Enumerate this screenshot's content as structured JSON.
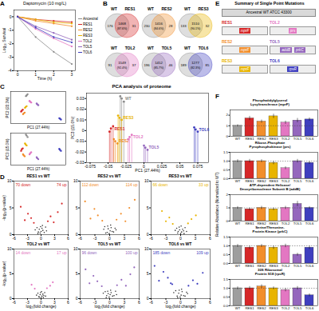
{
  "chart_data": [
    {
      "panel": "A",
      "type": "line",
      "title": "Daptomycin (10 mg/L)",
      "x_label": "Time (h)",
      "y_label": "Log₁₀ Survival",
      "x": [
        0,
        1,
        2,
        3
      ],
      "xlim": [
        -0.2,
        3.2
      ],
      "xticks": [
        0,
        1,
        2,
        3
      ],
      "ylim": [
        -4,
        0.5
      ],
      "yticks": [
        -4,
        -3,
        -2,
        -1,
        0
      ],
      "marker": "circle",
      "legend": "right",
      "series": [
        {
          "name": "Ancestral",
          "color": "#8c8c8c",
          "values": [
            0,
            -1.5,
            -2.6,
            -3.5
          ]
        },
        {
          "name": "RES1",
          "color": "#d62728",
          "values": [
            0,
            -0.2,
            -0.3,
            -0.4
          ]
        },
        {
          "name": "RES2",
          "color": "#f28e2b",
          "values": [
            0,
            -0.3,
            -0.5,
            -0.7
          ]
        },
        {
          "name": "RES3",
          "color": "#e8b400",
          "values": [
            0,
            -0.2,
            -0.4,
            -0.5
          ]
        },
        {
          "name": "TOL2",
          "color": "#e377c2",
          "values": [
            0,
            -0.9,
            -1.6,
            -2.2
          ]
        },
        {
          "name": "TOL5",
          "color": "#9467bd",
          "values": [
            0,
            -0.7,
            -1.2,
            -1.7
          ]
        },
        {
          "name": "TOL6",
          "color": "#3f3fbf",
          "values": [
            0,
            -0.8,
            -1.5,
            -1.9
          ]
        }
      ]
    },
    {
      "panel": "B",
      "type": "venn",
      "diagrams": [
        {
          "left": "WT",
          "right": "RES1",
          "left_only": 176,
          "both": 1468,
          "both_label": "(87.6%)",
          "right_only": 31,
          "color": "#d62728"
        },
        {
          "left": "WT",
          "right": "RES2",
          "left_only": 230,
          "both": 1416,
          "both_label": "(84.6%)",
          "right_only": 28,
          "color": "#f28e2b"
        },
        {
          "left": "WT",
          "right": "RES3",
          "left_only": 133,
          "both": 1510,
          "both_label": "(90.1%)",
          "right_only": 32,
          "color": "#e8b400"
        },
        {
          "left": "WT",
          "right": "TOL2",
          "left_only": 91,
          "both": 1549,
          "both_label": "(92.4%)",
          "right_only": 37,
          "color": "#e377c2"
        },
        {
          "left": "WT",
          "right": "TOL5",
          "left_only": 196,
          "both": 1452,
          "both_label": "(85.7%)",
          "right_only": 46,
          "color": "#9467bd"
        },
        {
          "left": "WT",
          "right": "TOL6",
          "left_only": 189,
          "both": 1277,
          "both_label": "(82.3%)",
          "right_only": 85,
          "color": "#3f3fbf"
        }
      ]
    },
    {
      "panel": "C",
      "type": "scatter",
      "title": "PCA analysis of proteome",
      "x_label": "PC1 (27.44%)",
      "y_label": "PC2 (22.3%)",
      "z_label": "PC3 (15.0%)",
      "xlim": [
        -0.08,
        0.09
      ],
      "ylim": [
        -0.06,
        0.06
      ],
      "zlim": [
        -0.03,
        0.035
      ],
      "xticks": [
        -0.075,
        -0.05,
        -0.025,
        0,
        0.025,
        0.05,
        0.075
      ],
      "zticks": [
        -0.03,
        -0.02,
        -0.01,
        0,
        0.01,
        0.02,
        0.03
      ],
      "series": [
        {
          "name": "WT",
          "color": "#8c8c8c",
          "x": [
            -0.031,
            -0.028,
            -0.033
          ],
          "y": [
            0.046,
            0.05,
            0.043
          ],
          "z": [
            0.03,
            0.027,
            0.032
          ]
        },
        {
          "name": "RES1",
          "color": "#d62728",
          "x": [
            -0.046,
            -0.043,
            -0.048
          ],
          "y": [
            -0.012,
            -0.008,
            -0.015
          ],
          "z": [
            0.002,
            0.004,
            -0.001
          ]
        },
        {
          "name": "RES2",
          "color": "#f28e2b",
          "x": [
            -0.04,
            -0.037,
            -0.042
          ],
          "y": [
            -0.022,
            -0.019,
            -0.025
          ],
          "z": [
            -0.01,
            -0.012,
            -0.008
          ]
        },
        {
          "name": "RES3",
          "color": "#e8b400",
          "x": [
            -0.034,
            -0.031,
            -0.036
          ],
          "y": [
            0.002,
            0.005,
            -0.001
          ],
          "z": [
            0.012,
            0.01,
            0.014
          ]
        },
        {
          "name": "TOL2",
          "color": "#e377c2",
          "x": [
            -0.02,
            -0.017,
            -0.022
          ],
          "y": [
            0.022,
            0.019,
            0.025
          ],
          "z": [
            -0.006,
            -0.004,
            -0.008
          ]
        },
        {
          "name": "TOL5",
          "color": "#9467bd",
          "x": [
            0.002,
            0.005,
            0.0
          ],
          "y": [
            0.012,
            0.009,
            0.015
          ],
          "z": [
            -0.016,
            -0.018,
            -0.014
          ]
        },
        {
          "name": "TOL6",
          "color": "#3f3fbf",
          "x": [
            0.072,
            0.075,
            0.07
          ],
          "y": [
            -0.042,
            -0.045,
            -0.04
          ],
          "z": [
            0.001,
            -0.001,
            0.003
          ]
        }
      ]
    },
    {
      "panel": "D",
      "type": "scatter",
      "x_label": "log₂(fold change)",
      "y_label": "-log₁₀(p-value)",
      "xlim": [
        -6,
        6
      ],
      "xticks": [
        -6,
        -3,
        0,
        3,
        6
      ],
      "ylim": [
        0,
        10
      ],
      "yticks": [
        0,
        5,
        10
      ],
      "plots": [
        {
          "title": "RES1 vs WT",
          "color": "#d62728",
          "down_label": "70 down",
          "up_label": "74 up",
          "ns_x": [
            -1.3,
            -0.9,
            -0.6,
            -0.4,
            -0.2,
            0.0,
            0.2,
            0.4,
            0.7,
            1.0,
            1.2,
            -0.7,
            0.3,
            -0.1
          ],
          "ns_y": [
            0.9,
            1.3,
            0.5,
            1.0,
            0.3,
            0.6,
            1.2,
            0.8,
            0.4,
            1.4,
            0.7,
            0.2,
            1.7,
            1.5
          ],
          "down_x": [
            -1.6,
            -2.2,
            -2.9,
            -3.6,
            -4.5
          ],
          "down_y": [
            2.2,
            3.1,
            3.9,
            2.7,
            5.2
          ],
          "up_x": [
            1.5,
            2.1,
            2.8,
            3.7,
            4.6
          ],
          "up_y": [
            2.5,
            3.4,
            2.3,
            4.2,
            5.8
          ]
        },
        {
          "title": "RES2 vs WT",
          "color": "#f28e2b",
          "down_label": "112 down",
          "up_label": "114 up",
          "ns_x": [
            -1.2,
            -1.0,
            -0.5,
            -0.3,
            -0.1,
            0.1,
            0.3,
            0.5,
            0.8,
            1.1,
            1.3,
            -0.8,
            0.2,
            -0.4
          ],
          "ns_y": [
            1.0,
            1.5,
            0.4,
            1.1,
            0.2,
            0.7,
            1.3,
            0.6,
            0.5,
            1.2,
            0.9,
            0.3,
            1.8,
            1.6
          ],
          "down_x": [
            -1.5,
            -2.4,
            -3.1,
            -3.9,
            -5.0
          ],
          "down_y": [
            2.6,
            3.6,
            4.8,
            3.0,
            6.2
          ],
          "up_x": [
            1.4,
            2.3,
            3.2,
            4.0,
            5.1
          ],
          "up_y": [
            2.8,
            3.9,
            2.5,
            5.0,
            6.5
          ]
        },
        {
          "title": "RES3 vs WT",
          "color": "#e8b400",
          "down_label": "66 down",
          "up_label": "33 up",
          "ns_x": [
            -1.1,
            -0.8,
            -0.5,
            -0.2,
            0.0,
            0.2,
            0.4,
            0.6,
            0.9,
            1.2,
            -0.6,
            0.1,
            -0.3,
            0.7
          ],
          "ns_y": [
            0.8,
            1.2,
            0.6,
            0.9,
            0.2,
            0.5,
            1.0,
            0.7,
            1.3,
            0.6,
            0.3,
            1.6,
            1.4,
            0.2
          ],
          "down_x": [
            -1.6,
            -2.3,
            -3.0,
            -3.8
          ],
          "down_y": [
            2.0,
            3.2,
            2.5,
            4.4
          ],
          "up_x": [
            1.5,
            2.2,
            3.1
          ],
          "up_y": [
            2.1,
            2.9,
            3.6
          ]
        },
        {
          "title": "TOL2 vs WT",
          "color": "#e377c2",
          "down_label": "14 down",
          "up_label": "17 up",
          "ns_x": [
            -1.0,
            -0.7,
            -0.5,
            -0.2,
            0.0,
            0.2,
            0.4,
            0.6,
            0.8,
            1.0,
            -0.4,
            0.1,
            -0.1,
            0.5
          ],
          "ns_y": [
            0.7,
            1.1,
            0.4,
            0.8,
            0.2,
            0.5,
            0.9,
            0.6,
            1.2,
            0.5,
            0.3,
            1.4,
            1.2,
            0.2
          ],
          "down_x": [
            -1.4,
            -2.1
          ],
          "down_y": [
            2.0,
            2.8
          ],
          "up_x": [
            1.3,
            2.0,
            2.6
          ],
          "up_y": [
            2.1,
            2.6,
            3.3
          ]
        },
        {
          "title": "TOL5 vs WT",
          "color": "#9467bd",
          "down_label": "96 down",
          "up_label": "100 up",
          "ns_x": [
            -1.3,
            -0.9,
            -0.6,
            -0.3,
            -0.1,
            0.1,
            0.3,
            0.6,
            0.9,
            1.2,
            1.4,
            -0.7,
            0.2,
            -0.4
          ],
          "ns_y": [
            1.1,
            1.4,
            0.6,
            1.0,
            0.3,
            0.8,
            1.2,
            0.5,
            0.6,
            1.5,
            0.8,
            0.2,
            1.7,
            1.5
          ],
          "down_x": [
            -1.6,
            -2.5,
            -3.3,
            -4.1,
            -4.9
          ],
          "down_y": [
            2.5,
            3.5,
            4.6,
            3.1,
            5.9
          ],
          "up_x": [
            1.5,
            2.4,
            3.3,
            4.2,
            5.0
          ],
          "up_y": [
            2.7,
            3.8,
            2.6,
            4.9,
            6.3
          ]
        },
        {
          "title": "TOL6 vs WT",
          "color": "#3f3fbf",
          "down_label": "185 down",
          "up_label": "109 up",
          "ns_x": [
            -1.4,
            -1.0,
            -0.7,
            -0.4,
            -0.1,
            0.1,
            0.3,
            0.6,
            0.9,
            1.2,
            1.4,
            -0.6,
            0.2,
            -0.3
          ],
          "ns_y": [
            1.2,
            1.6,
            0.5,
            1.1,
            0.3,
            0.7,
            1.4,
            0.6,
            0.5,
            1.3,
            1.0,
            0.2,
            1.9,
            1.7
          ],
          "down_x": [
            -1.7,
            -2.6,
            -3.5,
            -4.4,
            -5.3,
            -2.0
          ],
          "down_y": [
            2.9,
            4.2,
            5.4,
            3.6,
            6.6,
            3.1
          ],
          "up_x": [
            1.6,
            2.5,
            3.4,
            4.5
          ],
          "up_y": [
            2.6,
            3.7,
            3.0,
            5.2
          ]
        }
      ]
    },
    {
      "panel": "E",
      "type": "diagram",
      "title": "Summary of Single Point Mutations",
      "ancestor": "Ancestral WT ATCC 43300",
      "strains": [
        {
          "name": "RES1",
          "color": "#d62728",
          "genes": [
            "mprF"
          ]
        },
        {
          "name": "RES2",
          "color": "#f28e2b",
          "genes": [
            "mprF"
          ]
        },
        {
          "name": "RES3",
          "color": "#e8b400",
          "genes": [
            "mprF"
          ]
        },
        {
          "name": "TOL2",
          "color": "#e377c2",
          "genes": [
            "prs"
          ]
        },
        {
          "name": "TOL5",
          "color": "#9467bd",
          "genes": [
            "addB",
            "prkC"
          ]
        },
        {
          "name": "TOL6",
          "color": "#3f3fbf",
          "genes": [
            "rpsR"
          ]
        }
      ]
    },
    {
      "panel": "F",
      "type": "bar",
      "y_label": "Relative Abundance (Normalized to WT)",
      "reference_line": 1,
      "categories": [
        "WT",
        "RES1",
        "RES2",
        "RES3",
        "TOL2",
        "TOL5",
        "TOL6"
      ],
      "colors": [
        "#9e9e9e",
        "#d62728",
        "#f28e2b",
        "#e8b400",
        "#e377c2",
        "#9467bd",
        "#3f3fbf"
      ],
      "charts": [
        {
          "title": "Phosphatidylglycerol\nLysyltransferase (mprF)",
          "values": [
            1.0,
            1.7,
            1.4,
            1.9,
            1.3,
            1.5,
            1.6
          ],
          "errors": [
            0.1,
            0.2,
            0.15,
            0.2,
            0.15,
            0.2,
            0.15
          ],
          "ylim": [
            0,
            2.5
          ],
          "yticks": [
            0,
            1,
            2
          ]
        },
        {
          "title": "Ribose-Phosphate\nPyrophosphokinase (prs)",
          "values": [
            1.0,
            1.0,
            1.0,
            0.9,
            0.6,
            1.0,
            0.9
          ],
          "errors": [
            0.08,
            0.1,
            0.08,
            0.1,
            0.08,
            0.1,
            0.08
          ],
          "ylim": [
            0,
            1.5
          ],
          "yticks": [
            {
              "value": 0,
              "label": "0.0"
            },
            {
              "value": 0.5,
              "label": "0.5"
            },
            {
              "value": 1,
              "label": "1.0"
            },
            {
              "value": 1.5,
              "label": "1.5"
            }
          ]
        },
        {
          "title": "ATP-dependent Helicase/\nDeoxyribonuclease Subunit B (addB)",
          "values": [
            1.0,
            0.9,
            1.0,
            0.9,
            1.0,
            1.3,
            1.0
          ],
          "errors": [
            0.1,
            0.1,
            0.12,
            0.1,
            0.12,
            0.2,
            0.1
          ],
          "ylim": [
            0,
            2
          ],
          "yticks": [
            0,
            1,
            2
          ]
        },
        {
          "title": "Serine/Threonine-\nProtein Kinase (prkC)",
          "values": [
            1.0,
            0.9,
            1.0,
            0.9,
            1.0,
            0.5,
            0.9
          ],
          "errors": [
            0.08,
            0.1,
            0.08,
            0.1,
            0.1,
            0.08,
            0.1
          ],
          "ylim": [
            0,
            1.5
          ],
          "yticks": [
            {
              "value": 0,
              "label": "0.0"
            },
            {
              "value": 0.5,
              "label": "0.5"
            },
            {
              "value": 1,
              "label": "1.0"
            },
            {
              "value": 1.5,
              "label": "1.5"
            }
          ]
        },
        {
          "title": "30S Ribosomal\nProtein S18 (rpsR)",
          "values": [
            1.0,
            1.0,
            1.1,
            1.0,
            0.9,
            1.0,
            0.6
          ],
          "errors": [
            0.08,
            0.1,
            0.1,
            0.08,
            0.1,
            0.1,
            0.08
          ],
          "ylim": [
            0,
            1.5
          ],
          "yticks": [
            {
              "value": 0,
              "label": "0.0"
            },
            {
              "value": 0.5,
              "label": "0.5"
            },
            {
              "value": 1,
              "label": "1.0"
            },
            {
              "value": 1.5,
              "label": "1.5"
            }
          ]
        }
      ]
    }
  ]
}
